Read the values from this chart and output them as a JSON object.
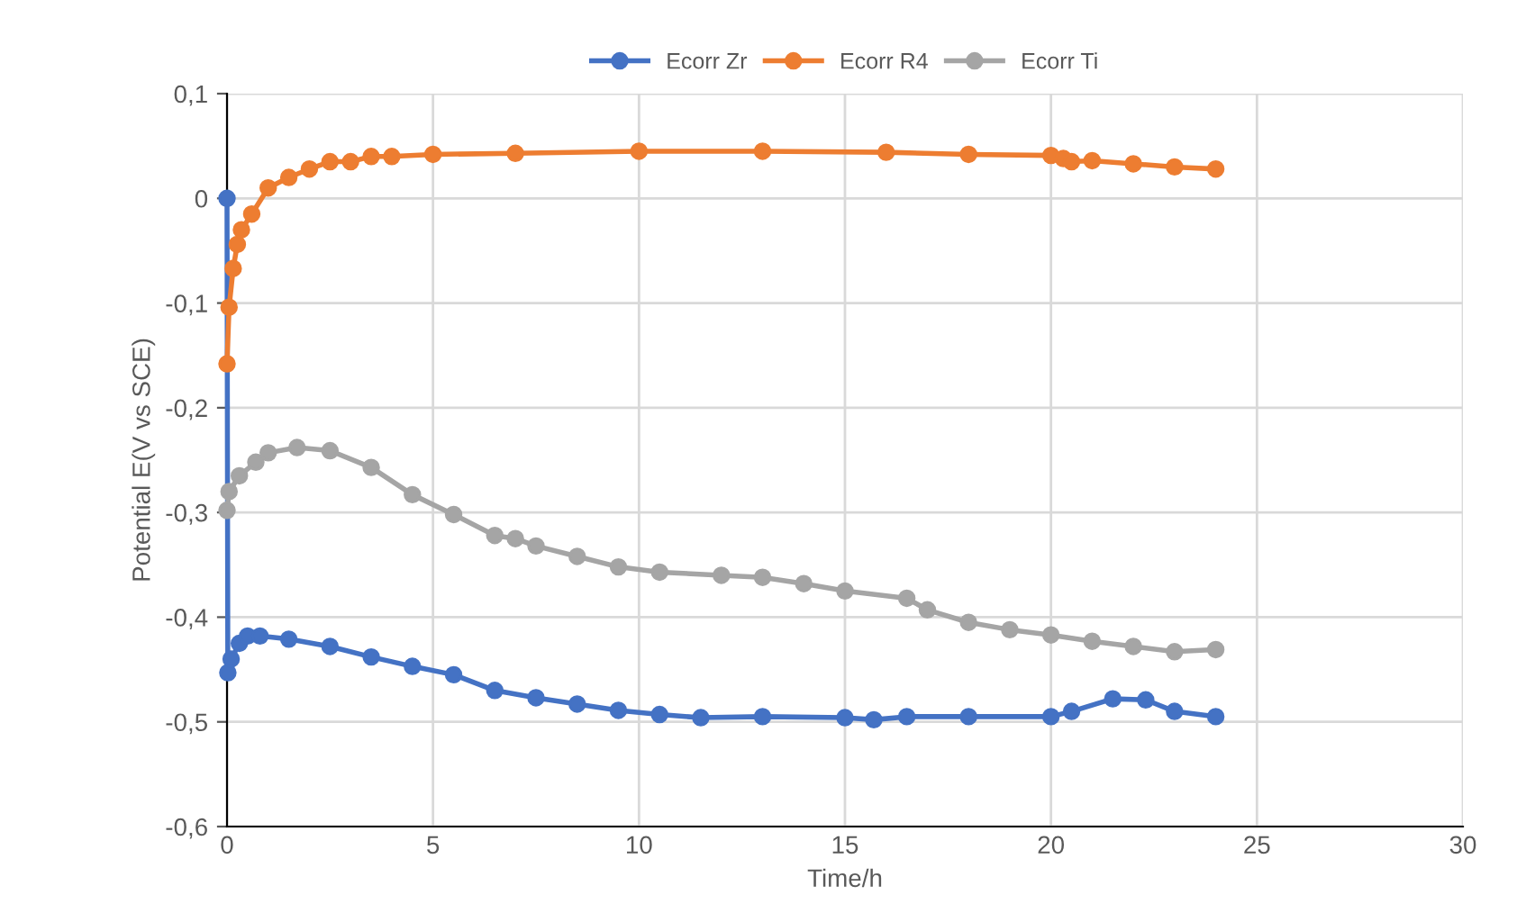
{
  "chart_data": {
    "type": "line",
    "xlabel": "Time/h",
    "ylabel": "Potential E(V vs SCE)",
    "xlim": [
      0,
      30
    ],
    "xticks": [
      0,
      5,
      10,
      15,
      20,
      25,
      30
    ],
    "ylim": [
      -0.6,
      0.1
    ],
    "yticks": [
      {
        "value": -0.6,
        "label": "-0,6"
      },
      {
        "value": -0.5,
        "label": "-0,5"
      },
      {
        "value": -0.4,
        "label": "-0,4"
      },
      {
        "value": -0.3,
        "label": "-0,3"
      },
      {
        "value": -0.2,
        "label": "-0,2"
      },
      {
        "value": -0.1,
        "label": "-0,1"
      },
      {
        "value": 0,
        "label": "0"
      },
      {
        "value": 0.1,
        "label": "0,1"
      }
    ],
    "grid": true,
    "legend": "top",
    "marker": "circle",
    "line_style": "solid",
    "series": [
      {
        "name": "Ecorr Zr",
        "color": "#4472c4",
        "x": [
          0,
          0.02,
          0.1,
          0.3,
          0.5,
          0.8,
          1.5,
          2.5,
          3.5,
          4.5,
          5.5,
          6.5,
          7.5,
          8.5,
          9.5,
          10.5,
          11.5,
          13,
          15,
          15.7,
          16.5,
          18,
          20,
          20.5,
          21.5,
          22.3,
          23,
          24
        ],
        "values": [
          0,
          -0.453,
          -0.44,
          -0.425,
          -0.418,
          -0.418,
          -0.421,
          -0.428,
          -0.438,
          -0.447,
          -0.455,
          -0.47,
          -0.477,
          -0.483,
          -0.489,
          -0.493,
          -0.496,
          -0.495,
          -0.496,
          -0.498,
          -0.495,
          -0.495,
          -0.495,
          -0.49,
          -0.478,
          -0.479,
          -0.49,
          -0.495
        ]
      },
      {
        "name": "Ecorr R4",
        "color": "#ed7d31",
        "x": [
          0,
          0.05,
          0.15,
          0.25,
          0.35,
          0.6,
          1,
          1.5,
          2,
          2.5,
          3,
          3.5,
          4,
          5,
          7,
          10,
          13,
          16,
          18,
          20,
          20.3,
          20.5,
          21,
          22,
          23,
          24
        ],
        "values": [
          -0.158,
          -0.104,
          -0.067,
          -0.044,
          -0.03,
          -0.015,
          0.01,
          0.02,
          0.028,
          0.035,
          0.035,
          0.04,
          0.04,
          0.042,
          0.043,
          0.045,
          0.045,
          0.044,
          0.042,
          0.041,
          0.038,
          0.035,
          0.036,
          0.033,
          0.03,
          0.028
        ]
      },
      {
        "name": "Ecorr Ti",
        "color": "#a5a5a5",
        "x": [
          0,
          0.05,
          0.3,
          0.7,
          1,
          1.7,
          2.5,
          3.5,
          4.5,
          5.5,
          6.5,
          7,
          7.5,
          8.5,
          9.5,
          10.5,
          12,
          13,
          14,
          15,
          16.5,
          17,
          18,
          19,
          20,
          21,
          22,
          23,
          24
        ],
        "values": [
          -0.298,
          -0.28,
          -0.265,
          -0.252,
          -0.243,
          -0.238,
          -0.241,
          -0.257,
          -0.283,
          -0.302,
          -0.322,
          -0.325,
          -0.332,
          -0.342,
          -0.352,
          -0.357,
          -0.36,
          -0.362,
          -0.368,
          -0.375,
          -0.382,
          -0.393,
          -0.405,
          -0.412,
          -0.417,
          -0.423,
          -0.428,
          -0.433,
          -0.431
        ]
      }
    ]
  }
}
